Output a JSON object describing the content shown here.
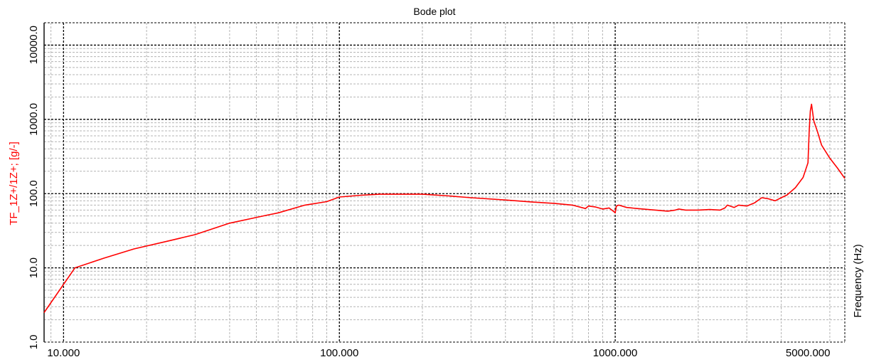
{
  "chart_data": {
    "type": "line",
    "title": "Bode plot",
    "xlabel": "Frequency (Hz)",
    "ylabel": "TF_1Z+/1Z+; [g/-]",
    "x_scale": "log",
    "y_scale": "log",
    "xlim": [
      8.5,
      6800
    ],
    "ylim": [
      1.0,
      20000
    ],
    "x_ticks": [
      10,
      100,
      1000,
      5000
    ],
    "x_tick_labels": [
      "10.000",
      "100.000",
      "1000.000",
      "5000.000"
    ],
    "y_ticks": [
      1,
      10,
      100,
      1000,
      10000
    ],
    "y_tick_labels": [
      "1.0",
      "10.0",
      "100.0",
      "1000.0",
      "10000.0"
    ],
    "grid": true,
    "colors": {
      "series": "#ff0000",
      "ylabel": "#ff0000",
      "major_grid": "#000000",
      "minor_grid": "#b4b4b4"
    },
    "series": [
      {
        "x": [
          8.5,
          11,
          14,
          18,
          24,
          30,
          40,
          53,
          60,
          75,
          90,
          100,
          120,
          140,
          200,
          250,
          300,
          400,
          500,
          600,
          700,
          780,
          800,
          850,
          900,
          950,
          990,
          1000,
          1010,
          1030,
          1100,
          1200,
          1400,
          1550,
          1650,
          1700,
          1800,
          2000,
          2200,
          2400,
          2500,
          2550,
          2700,
          2800,
          3000,
          3200,
          3400,
          3600,
          3800,
          4000,
          4200,
          4500,
          4800,
          5000,
          5050,
          5100,
          5150,
          5250,
          5400,
          5600,
          6000,
          6400,
          6800
        ],
        "y": [
          2.5,
          10,
          13.5,
          18,
          23,
          28,
          40,
          50,
          55,
          70,
          78,
          90,
          95,
          98,
          98,
          93,
          88,
          82,
          77,
          74,
          70,
          63,
          68,
          66,
          62,
          64,
          57,
          55,
          68,
          70,
          65,
          63,
          60,
          58,
          60,
          62,
          60,
          60,
          61,
          60,
          64,
          70,
          65,
          70,
          68,
          75,
          88,
          85,
          80,
          88,
          96,
          120,
          165,
          260,
          700,
          1300,
          1600,
          950,
          700,
          450,
          300,
          220,
          160
        ]
      }
    ]
  }
}
